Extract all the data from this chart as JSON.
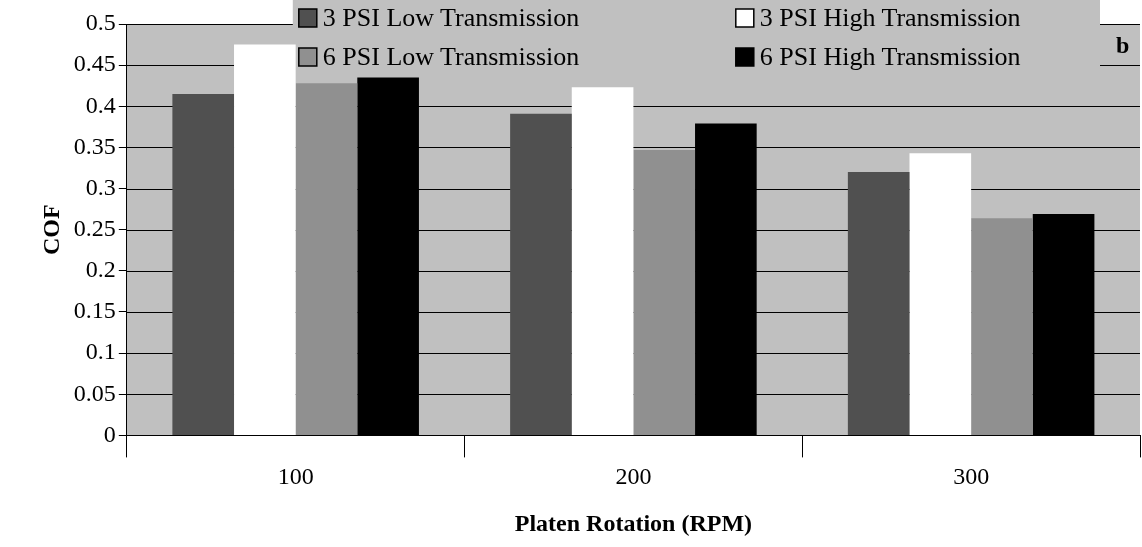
{
  "chart_data": {
    "type": "bar",
    "xlabel": "Platen Rotation (RPM)",
    "ylabel": "COF",
    "categories": [
      "100",
      "200",
      "300"
    ],
    "series": [
      {
        "name": "3 PSI Low Transmission",
        "color": "#505050",
        "values": [
          0.415,
          0.391,
          0.32
        ]
      },
      {
        "name": "3 PSI High Transmission",
        "color": "#ffffff",
        "values": [
          0.475,
          0.423,
          0.343
        ]
      },
      {
        "name": "6 PSI Low Transmission",
        "color": "#909090",
        "values": [
          0.428,
          0.347,
          0.264
        ]
      },
      {
        "name": "6 PSI High Transmission",
        "color": "#000000",
        "values": [
          0.435,
          0.379,
          0.269
        ]
      }
    ],
    "ylim": [
      0,
      0.5
    ],
    "yticks": [
      0,
      0.05,
      0.1,
      0.15,
      0.2,
      0.25,
      0.3,
      0.35,
      0.4,
      0.45,
      0.5
    ],
    "grid": "y",
    "legend": "top",
    "annotations": [
      "b"
    ]
  }
}
